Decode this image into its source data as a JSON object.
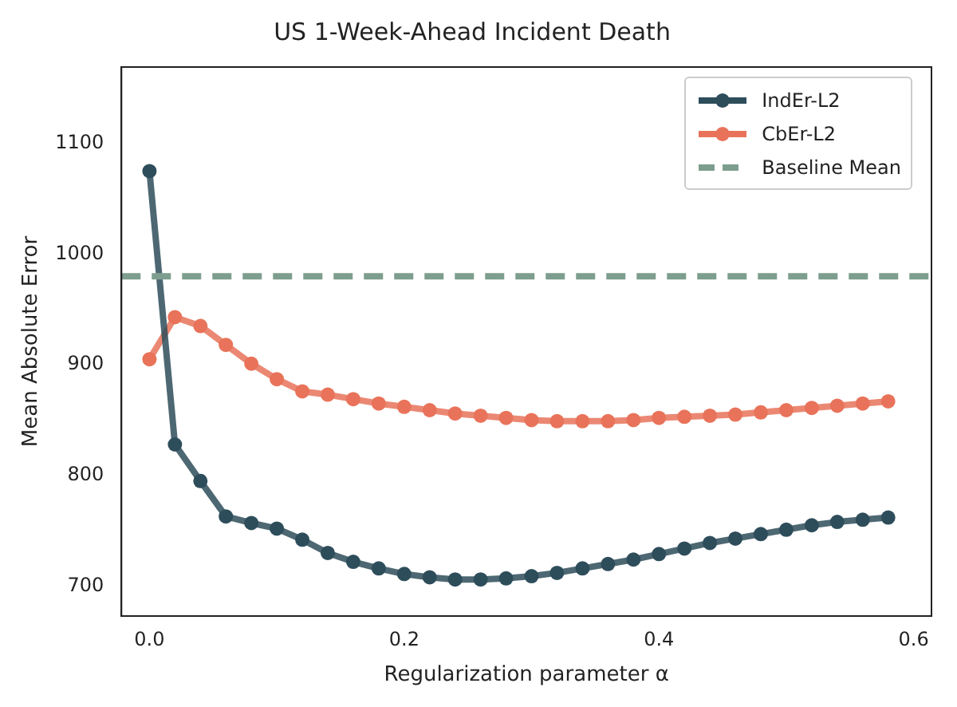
{
  "chart_data": {
    "type": "line",
    "title": "US 1-Week-Ahead Incident Death",
    "xlabel": "Regularization parameter α",
    "ylabel": "Mean Absolute Error",
    "x": [
      0,
      0.02,
      0.04,
      0.06,
      0.08,
      0.1,
      0.12,
      0.14,
      0.16,
      0.18,
      0.2,
      0.22,
      0.24,
      0.26,
      0.28,
      0.3,
      0.32,
      0.34,
      0.36,
      0.38,
      0.4,
      0.42,
      0.44,
      0.46,
      0.48,
      0.5,
      0.52,
      0.54,
      0.56,
      0.58
    ],
    "series": [
      {
        "name": "IndEr-L2",
        "color": "#2e4d5b",
        "values": [
          1075,
          828,
          795,
          763,
          757,
          752,
          742,
          730,
          722,
          716,
          711,
          708,
          706,
          706,
          707,
          709,
          712,
          716,
          720,
          724,
          729,
          734,
          739,
          743,
          747,
          751,
          755,
          758,
          760,
          762
        ]
      },
      {
        "name": "CbEr-L2",
        "color": "#e8735a",
        "values": [
          905,
          943,
          935,
          918,
          901,
          887,
          876,
          873,
          869,
          865,
          862,
          859,
          856,
          854,
          852,
          850,
          849,
          849,
          849,
          850,
          852,
          853,
          854,
          855,
          857,
          859,
          861,
          863,
          865,
          867
        ]
      }
    ],
    "ref_lines": [
      {
        "axis": "y",
        "value": 980,
        "label": "Baseline Mean",
        "color": "#7d9e8e",
        "line_style": "dashed"
      }
    ],
    "xlim": [
      -0.022,
      0.614
    ],
    "xticks": [
      {
        "value": 0,
        "label": "0.0"
      },
      0.2,
      0.4,
      0.6
    ],
    "ylim": [
      673,
      1169
    ],
    "yticks": [
      700,
      800,
      900,
      1000,
      1100
    ],
    "grid": false,
    "legend": "top right",
    "marker": "circle",
    "line_style": "solid"
  }
}
